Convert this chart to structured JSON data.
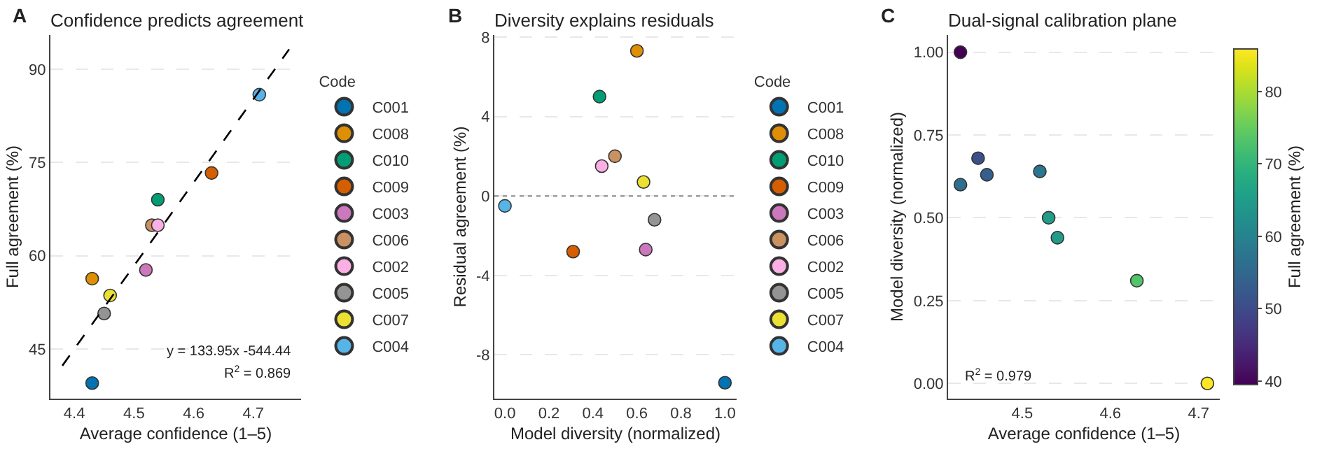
{
  "chart_data": [
    {
      "type": "scatter",
      "title": "Confidence predicts agreement",
      "xlabel": "Average confidence (1–5)",
      "ylabel": "Full agreement (%)",
      "legend_title": "Code",
      "legend": "right",
      "grid": "y",
      "marker": "circle",
      "annotations": [
        "A",
        "y = 133.95x -544.44",
        "R$^{2}$ = 0.869"
      ],
      "xlim": [
        4.36,
        4.78
      ],
      "xticks": [
        4.4,
        4.5,
        4.6,
        4.7
      ],
      "ylim": [
        37,
        95.5
      ],
      "yticks": [
        45,
        60,
        75,
        90
      ],
      "series": [
        {
          "name": "C001",
          "color": "#0173b2",
          "x": [
            4.43
          ],
          "values": [
            39.5
          ]
        },
        {
          "name": "C008",
          "color": "#de8f05",
          "x": [
            4.43
          ],
          "values": [
            56.3
          ]
        },
        {
          "name": "C010",
          "color": "#029e73",
          "x": [
            4.54
          ],
          "values": [
            69.0
          ]
        },
        {
          "name": "C009",
          "color": "#d55e00",
          "x": [
            4.63
          ],
          "values": [
            73.3
          ]
        },
        {
          "name": "C003",
          "color": "#cc78bc",
          "x": [
            4.52
          ],
          "values": [
            57.7
          ]
        },
        {
          "name": "C006",
          "color": "#ca9161",
          "x": [
            4.53
          ],
          "values": [
            64.9
          ]
        },
        {
          "name": "C002",
          "color": "#fbafe4",
          "x": [
            4.54
          ],
          "values": [
            64.9
          ]
        },
        {
          "name": "C005",
          "color": "#949494",
          "x": [
            4.45
          ],
          "values": [
            50.7
          ]
        },
        {
          "name": "C007",
          "color": "#ece133",
          "x": [
            4.46
          ],
          "values": [
            53.6
          ]
        },
        {
          "name": "C004",
          "color": "#56b4e9",
          "x": [
            4.71
          ],
          "values": [
            85.9
          ]
        },
        {
          "type": "line",
          "color": "#000000",
          "line_style": "dashed",
          "marker": "none",
          "x": [
            4.38,
            4.76
          ],
          "values": [
            42.3,
            93.2
          ]
        }
      ]
    },
    {
      "type": "scatter",
      "title": "Diversity explains residuals",
      "xlabel": "Model diversity (normalized)",
      "ylabel": "Residual agreement (%)",
      "legend_title": "Code",
      "legend": "right",
      "grid": "y",
      "marker": "circle",
      "annotations": [
        "B"
      ],
      "xlim": [
        -0.048,
        1.053
      ],
      "xticks": [
        {
          "value": 0,
          "label": "0.0"
        },
        0.2,
        0.4,
        0.6,
        0.8,
        {
          "value": 1,
          "label": "1.0"
        }
      ],
      "ylim": [
        -10.2,
        8.1
      ],
      "yticks": [
        -8,
        -4,
        0,
        4,
        8
      ],
      "ref_lines": [
        {
          "axis": "y",
          "value": 0,
          "color": "#888888",
          "line_style": "dotted"
        }
      ],
      "series": [
        {
          "name": "C001",
          "color": "#0173b2",
          "x": [
            1.0
          ],
          "values": [
            -9.4
          ]
        },
        {
          "name": "C008",
          "color": "#de8f05",
          "x": [
            0.6
          ],
          "values": [
            7.3
          ]
        },
        {
          "name": "C010",
          "color": "#029e73",
          "x": [
            0.43
          ],
          "values": [
            5.0
          ]
        },
        {
          "name": "C009",
          "color": "#d55e00",
          "x": [
            0.31
          ],
          "values": [
            -2.8
          ]
        },
        {
          "name": "C003",
          "color": "#cc78bc",
          "x": [
            0.64
          ],
          "values": [
            -2.7
          ]
        },
        {
          "name": "C006",
          "color": "#ca9161",
          "x": [
            0.5
          ],
          "values": [
            2.0
          ]
        },
        {
          "name": "C002",
          "color": "#fbafe4",
          "x": [
            0.44
          ],
          "values": [
            1.5
          ]
        },
        {
          "name": "C005",
          "color": "#949494",
          "x": [
            0.68
          ],
          "values": [
            -1.2
          ]
        },
        {
          "name": "C007",
          "color": "#ece133",
          "x": [
            0.63
          ],
          "values": [
            0.7
          ]
        },
        {
          "name": "C004",
          "color": "#56b4e9",
          "x": [
            0.0
          ],
          "values": [
            -0.5
          ]
        }
      ]
    },
    {
      "type": "scatter",
      "title": "Dual-signal calibration plane",
      "xlabel": "Average confidence (1–5)",
      "ylabel": "Model diversity (normalized)",
      "clabel": "Full agreement (%)",
      "grid": "y",
      "marker": "circle",
      "annotations": [
        "C",
        "R$^{2}$ = 0.979"
      ],
      "xlim": [
        4.416,
        4.724
      ],
      "xticks": [
        4.5,
        4.6,
        4.7
      ],
      "ylim": [
        -0.046,
        1.052
      ],
      "yticks": [
        {
          "value": 0,
          "label": "0.00"
        },
        0.25,
        {
          "value": 0.5,
          "label": "0.50"
        },
        0.75,
        {
          "value": 1,
          "label": "1.00"
        }
      ],
      "clim": [
        39.5,
        85.9
      ],
      "cticks": [
        40,
        50,
        60,
        70,
        80
      ],
      "series": [
        {
          "x": [
            4.43,
            4.43,
            4.54,
            4.63,
            4.52,
            4.53,
            4.54,
            4.45,
            4.46,
            4.71
          ],
          "values": [
            1.0,
            0.6,
            null,
            0.31,
            0.64,
            0.5,
            0.44,
            0.68,
            0.63,
            0.0
          ],
          "cvalues": [
            39.5,
            56.3,
            null,
            73.3,
            57.7,
            64.9,
            64.9,
            50.7,
            53.6,
            85.9
          ]
        }
      ]
    }
  ]
}
